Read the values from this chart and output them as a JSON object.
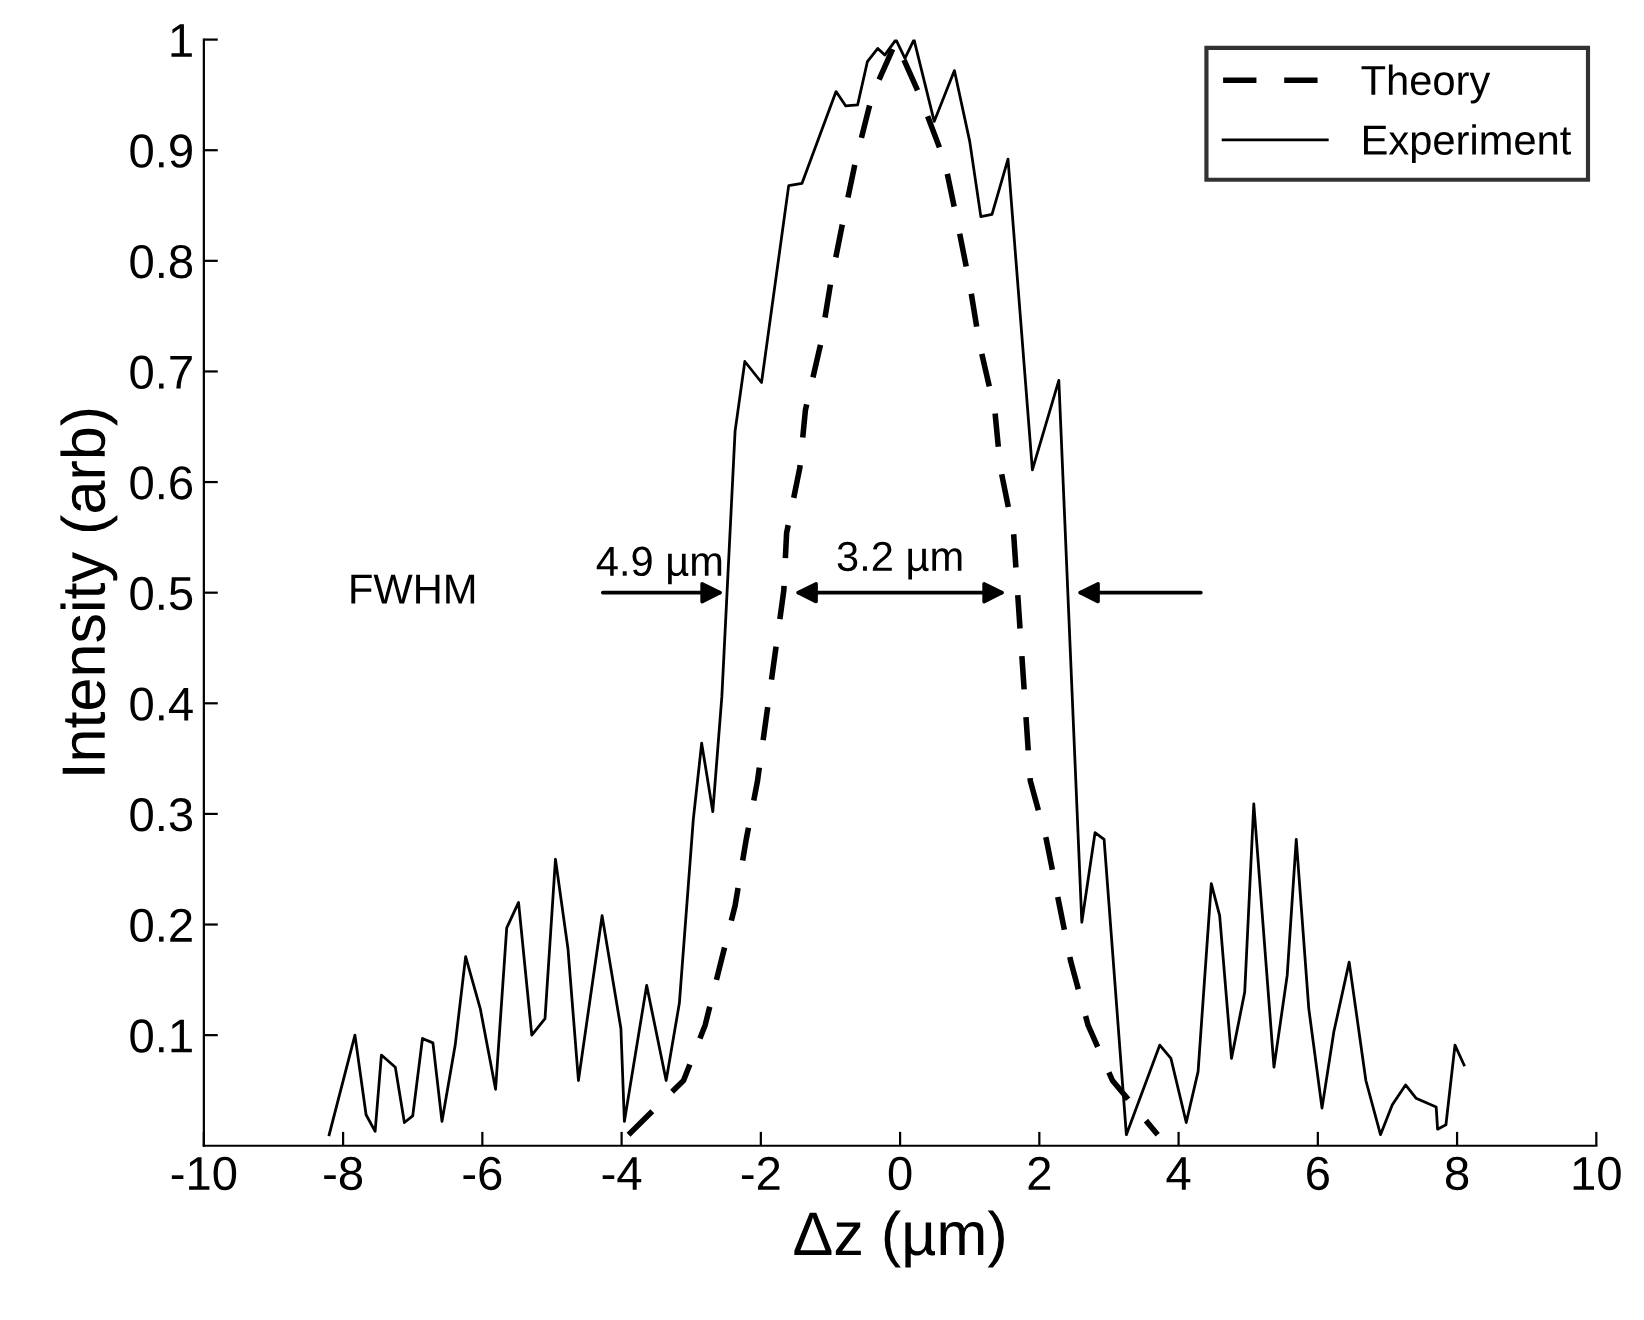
{
  "chart_data": {
    "type": "line",
    "xlabel": "Δz (µm)",
    "ylabel": "Intensity (arb)",
    "xlim": [
      -10,
      10
    ],
    "xticks": [
      -10,
      -8,
      -6,
      -4,
      -2,
      0,
      2,
      4,
      6,
      8,
      10
    ],
    "ylim": [
      0,
      1
    ],
    "yticks": [
      0.1,
      0.2,
      0.3,
      0.4,
      0.5,
      0.6,
      0.7,
      0.8,
      0.9,
      1
    ],
    "grid": false,
    "legend": "top right",
    "series": [
      {
        "name": "Theory",
        "color": "#000000",
        "line_style": "dashed",
        "x": [
          -3.9,
          -3.11,
          -2.8,
          -2.57,
          -2.37,
          -2.21,
          -2.05,
          -1.67,
          -1.63,
          -1.44,
          -1.36,
          -1.14,
          -1.0,
          -0.81,
          -0.64,
          -0.4,
          -0.06,
          0.28,
          0.64,
          0.81,
          1.0,
          1.14,
          1.36,
          1.44,
          1.63,
          1.87,
          2.1,
          2.28,
          2.45,
          2.7,
          3.05,
          3.7
        ],
        "values": [
          0.01,
          0.059,
          0.109,
          0.167,
          0.217,
          0.277,
          0.329,
          0.502,
          0.554,
          0.613,
          0.665,
          0.725,
          0.779,
          0.839,
          0.89,
          0.95,
          0.998,
          0.95,
          0.89,
          0.839,
          0.779,
          0.725,
          0.665,
          0.613,
          0.554,
          0.33,
          0.277,
          0.22,
          0.167,
          0.109,
          0.059,
          0.01
        ]
      },
      {
        "name": "Experiment",
        "color": "#000000",
        "line_style": "solid",
        "x": [
          -8.2,
          -7.83,
          -7.67,
          -7.54,
          -7.45,
          -7.25,
          -7.12,
          -7.0,
          -6.86,
          -6.71,
          -6.58,
          -6.39,
          -6.24,
          -6.03,
          -5.81,
          -5.65,
          -5.48,
          -5.29,
          -5.1,
          -4.95,
          -4.77,
          -4.62,
          -4.28,
          -4.01,
          -3.96,
          -3.64,
          -3.36,
          -3.17,
          -2.97,
          -2.85,
          -2.69,
          -2.56,
          -2.37,
          -2.23,
          -1.99,
          -1.6,
          -1.41,
          -0.92,
          -0.78,
          -0.61,
          -0.47,
          -0.32,
          -0.22,
          -0.06,
          0.07,
          0.2,
          0.49,
          0.78,
          1.0,
          1.16,
          1.32,
          1.55,
          1.9,
          2.28,
          2.61,
          2.8,
          2.93,
          3.25,
          3.73,
          3.89,
          4.11,
          4.28,
          4.47,
          4.59,
          4.76,
          4.95,
          5.08,
          5.37,
          5.56,
          5.69,
          5.87,
          6.06,
          6.23,
          6.45,
          6.69,
          6.9,
          7.07,
          7.26,
          7.41,
          7.7,
          7.72,
          7.84,
          7.97,
          8.1
        ],
        "values": [
          0.01,
          0.1,
          0.028,
          0.013,
          0.082,
          0.071,
          0.021,
          0.027,
          0.097,
          0.093,
          0.022,
          0.091,
          0.171,
          0.124,
          0.051,
          0.197,
          0.22,
          0.1,
          0.115,
          0.259,
          0.178,
          0.059,
          0.208,
          0.106,
          0.022,
          0.145,
          0.059,
          0.129,
          0.295,
          0.364,
          0.302,
          0.406,
          0.646,
          0.709,
          0.69,
          0.868,
          0.87,
          0.953,
          0.94,
          0.941,
          0.98,
          0.992,
          0.986,
          1.0,
          0.983,
          1.0,
          0.926,
          0.972,
          0.908,
          0.84,
          0.842,
          0.892,
          0.611,
          0.692,
          0.202,
          0.283,
          0.277,
          0.01,
          0.091,
          0.079,
          0.021,
          0.067,
          0.237,
          0.208,
          0.079,
          0.139,
          0.309,
          0.071,
          0.154,
          0.277,
          0.124,
          0.034,
          0.103,
          0.166,
          0.059,
          0.01,
          0.037,
          0.055,
          0.043,
          0.035,
          0.015,
          0.019,
          0.091,
          0.073
        ]
      }
    ],
    "annotations": [
      "FWHM",
      {
        "text": "4.9 µm",
        "x": -2.45,
        "y": 0.5
      },
      {
        "text": "3.2 µm",
        "x": 1.6,
        "y": 0.5
      }
    ]
  }
}
